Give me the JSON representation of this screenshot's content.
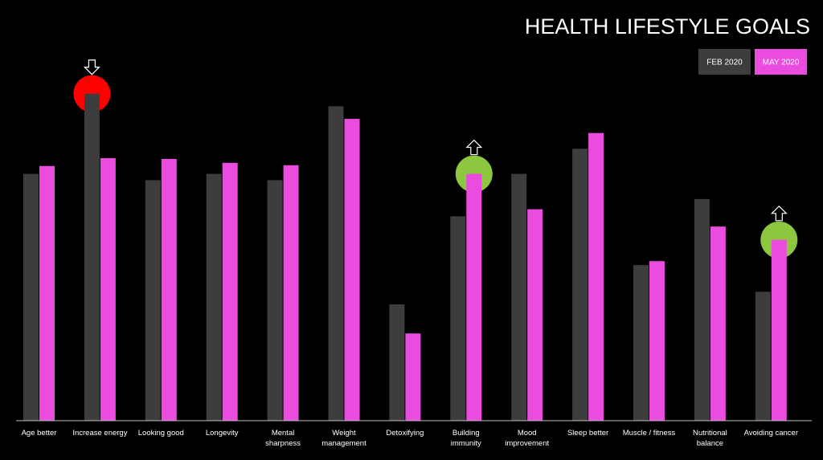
{
  "chart_data": {
    "type": "bar",
    "title": "HEALTH LIFESTYLE GOALS",
    "xlabel": "",
    "ylabel": "",
    "grid": false,
    "legend_position": "top-right",
    "categories": [
      [
        "Age better"
      ],
      [
        "Increase energy"
      ],
      [
        "Looking good"
      ],
      [
        "Longevity"
      ],
      [
        "Mental",
        "sharpness"
      ],
      [
        "Weight",
        "management"
      ],
      [
        "Detoxifying"
      ],
      [
        "Building",
        "immunity"
      ],
      [
        "Mood",
        "improvement"
      ],
      [
        "Sleep better"
      ],
      [
        "Muscle / fitness"
      ],
      [
        "Nutritional",
        "balance"
      ],
      [
        "Avoiding cancer"
      ]
    ],
    "series": [
      {
        "name": "FEB 2020",
        "color": "#3d3d3d",
        "values": [
          31.4,
          41.6,
          30.6,
          31.4,
          30.6,
          40.0,
          14.8,
          26.0,
          31.4,
          34.6,
          19.8,
          28.2,
          16.4
        ]
      },
      {
        "name": "MAY 2020",
        "color": "#ea4ce0",
        "values": [
          32.4,
          33.4,
          33.3,
          32.8,
          32.5,
          38.4,
          11.1,
          31.4,
          26.9,
          36.6,
          20.3,
          24.7,
          23.0
        ]
      }
    ],
    "ylim": [
      0,
      52.5
    ],
    "highlights": [
      {
        "category_index": 1,
        "series_index": 0,
        "color": "#ff0000",
        "arrow": "down"
      },
      {
        "category_index": 7,
        "series_index": 1,
        "color": "#8dc63f",
        "arrow": "up"
      },
      {
        "category_index": 12,
        "series_index": 1,
        "color": "#8dc63f",
        "arrow": "up"
      }
    ]
  }
}
